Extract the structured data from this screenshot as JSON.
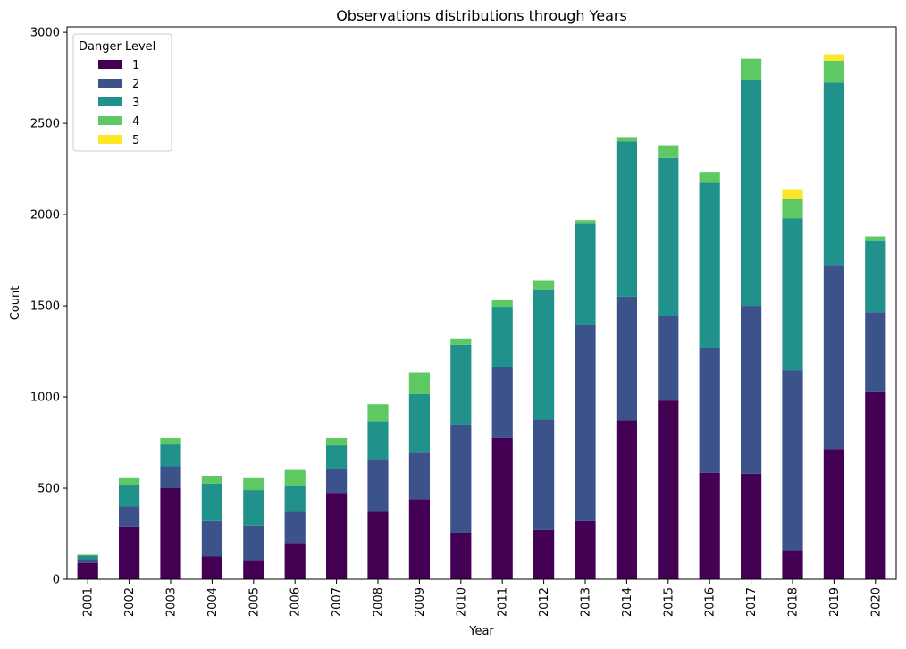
{
  "chart_data": {
    "type": "bar",
    "stacked": true,
    "title": "Observations distributions through Years",
    "xlabel": "Year",
    "ylabel": "Count",
    "ylim": [
      0,
      3030
    ],
    "yticks": [
      0,
      500,
      1000,
      1500,
      2000,
      2500,
      3000
    ],
    "grid": false,
    "legend_position": "top-left",
    "legend_title": "Danger Level",
    "categories": [
      "2001",
      "2002",
      "2003",
      "2004",
      "2005",
      "2006",
      "2007",
      "2008",
      "2009",
      "2010",
      "2011",
      "2012",
      "2013",
      "2014",
      "2015",
      "2016",
      "2017",
      "2018",
      "2019",
      "2020"
    ],
    "series": [
      {
        "name": "1",
        "color": "#440154",
        "values": [
          90,
          290,
          500,
          125,
          105,
          200,
          470,
          370,
          440,
          255,
          775,
          270,
          320,
          870,
          980,
          585,
          580,
          160,
          715,
          1030
        ]
      },
      {
        "name": "2",
        "color": "#3b528b",
        "values": [
          20,
          110,
          120,
          195,
          190,
          170,
          135,
          285,
          255,
          595,
          390,
          605,
          1075,
          680,
          465,
          685,
          920,
          985,
          1005,
          435
        ]
      },
      {
        "name": "3",
        "color": "#21918c",
        "values": [
          20,
          115,
          120,
          205,
          195,
          140,
          130,
          210,
          320,
          435,
          330,
          715,
          555,
          850,
          865,
          905,
          1240,
          835,
          1005,
          390
        ]
      },
      {
        "name": "4",
        "color": "#5ec962",
        "values": [
          5,
          40,
          35,
          40,
          65,
          90,
          40,
          95,
          120,
          35,
          35,
          50,
          20,
          25,
          70,
          60,
          115,
          105,
          120,
          25
        ]
      },
      {
        "name": "5",
        "color": "#fde725",
        "values": [
          0,
          0,
          0,
          0,
          0,
          0,
          0,
          0,
          0,
          0,
          0,
          0,
          0,
          0,
          0,
          0,
          0,
          55,
          35,
          0
        ]
      }
    ]
  }
}
